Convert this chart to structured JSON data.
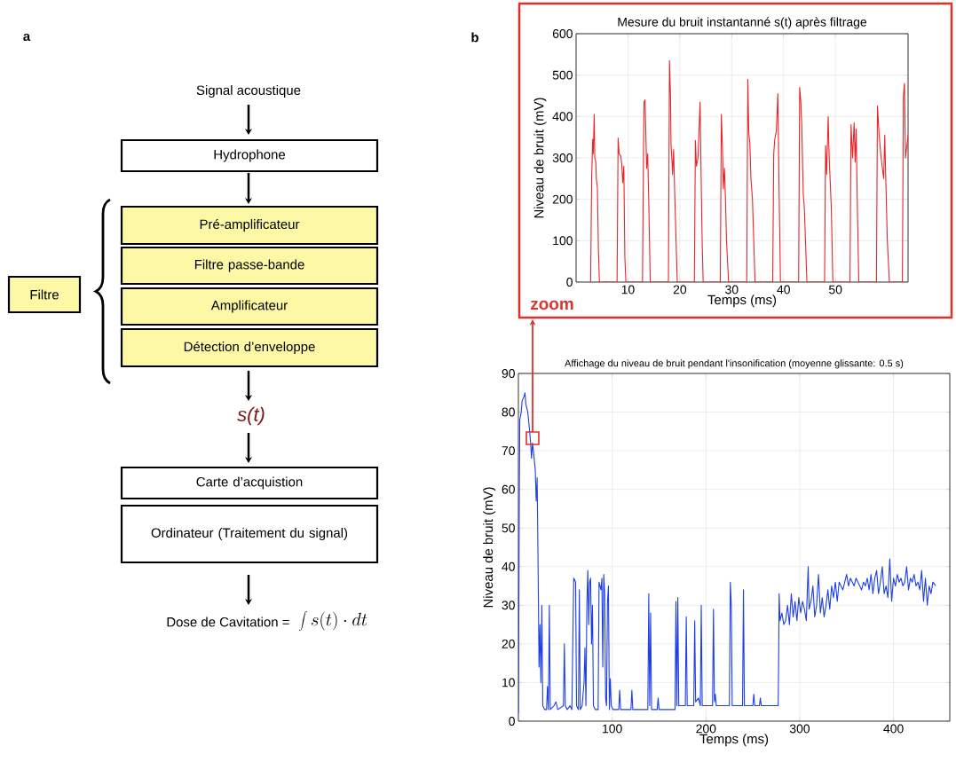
{
  "chart_data": [
    {
      "type": "other",
      "annotations": [
        "a",
        "Signal acoustique",
        "Hydrophone",
        "Pré-amplificateur",
        "Filtre passe-bande",
        "Amplificateur",
        "Détection d’enveloppe",
        "Filtre",
        "s(t)",
        "Carte d’acquistion",
        "Ordinateur (Traitement du signal)",
        "Dose de Cavitation  =",
        "\\int s(t)\\cdot dt"
      ]
    },
    {
      "type": "line",
      "title": "Mesure du bruit instantanné s(t) après filtrage",
      "xlabel": "Temps (ms)",
      "ylabel": "Niveau de bruit (mV)",
      "annotations": [
        "b",
        "zoom"
      ],
      "color": "#e8262a",
      "xlim": [
        0,
        64
      ],
      "ylim": [
        0,
        600
      ],
      "xticks": [
        10,
        20,
        30,
        40,
        50
      ],
      "yticks": [
        0,
        100,
        200,
        300,
        400,
        500,
        600
      ],
      "grid": true,
      "x": [
        2.8,
        3.0,
        3.2,
        3.3,
        3.5,
        3.6,
        3.8,
        3.9,
        4.1,
        4.3,
        4.5,
        7.9,
        8.1,
        8.3,
        8.6,
        8.8,
        9.0,
        9.2,
        9.4,
        9.6,
        12.8,
        13.0,
        13.1,
        13.3,
        13.5,
        13.6,
        13.8,
        14.0,
        14.3,
        17.8,
        18.0,
        18.2,
        18.3,
        18.5,
        18.6,
        18.8,
        19.0,
        19.5,
        22.8,
        23.0,
        23.2,
        23.5,
        23.9,
        24.1,
        24.3,
        24.5,
        27.8,
        28.0,
        28.2,
        28.4,
        28.6,
        28.8,
        29.0,
        29.4,
        32.9,
        33.1,
        33.3,
        33.5,
        33.7,
        34.0,
        34.5,
        37.9,
        38.1,
        38.3,
        38.6,
        38.9,
        39.1,
        39.4,
        42.9,
        43.1,
        43.3,
        43.5,
        43.8,
        44.0,
        44.5,
        47.9,
        48.1,
        48.3,
        48.6,
        48.8,
        49.0,
        49.2,
        49.5,
        52.8,
        53.0,
        53.3,
        53.6,
        53.8,
        54.0,
        54.2,
        54.5,
        57.9,
        58.1,
        58.4,
        58.8,
        59.3,
        59.5,
        59.7,
        60.0,
        60.4,
        62.9,
        63.1,
        63.3,
        63.5,
        64
      ],
      "values": [
        0,
        250,
        345,
        310,
        405,
        300,
        290,
        250,
        230,
        80,
        0,
        0,
        348,
        310,
        305,
        285,
        240,
        280,
        60,
        0,
        0,
        330,
        435,
        440,
        330,
        275,
        310,
        200,
        0,
        0,
        535,
        450,
        330,
        290,
        260,
        320,
        220,
        0,
        0,
        342,
        280,
        300,
        435,
        260,
        100,
        0,
        0,
        405,
        330,
        225,
        275,
        200,
        100,
        0,
        0,
        490,
        360,
        335,
        250,
        200,
        0,
        0,
        310,
        345,
        365,
        455,
        250,
        0,
        0,
        470,
        440,
        380,
        210,
        180,
        0,
        0,
        330,
        260,
        400,
        295,
        240,
        180,
        0,
        0,
        380,
        300,
        385,
        290,
        370,
        200,
        0,
        0,
        425,
        360,
        300,
        250,
        355,
        250,
        100,
        0,
        0,
        450,
        480,
        300,
        355
      ]
    },
    {
      "type": "line",
      "title": "Affichage du niveau de bruit pendant l'insonification (moyenne glissante: 0.5 s)",
      "xlabel": "Temps (ms)",
      "ylabel": "Niveau de bruit (mV)",
      "color": "#1f3fe6",
      "xlim": [
        0,
        460
      ],
      "ylim": [
        0,
        90
      ],
      "xticks": [
        100,
        200,
        300,
        400
      ],
      "yticks": [
        0,
        10,
        20,
        30,
        40,
        50,
        60,
        70,
        80,
        90
      ],
      "grid": true,
      "x": [
        0,
        1,
        1.5,
        3,
        4,
        6,
        7,
        8,
        10,
        12,
        13,
        14,
        15,
        16,
        18,
        19,
        20,
        21,
        22,
        23,
        24,
        25,
        26,
        28,
        30,
        31,
        32,
        33,
        34,
        38,
        40,
        42,
        48,
        49,
        50,
        52,
        55,
        57,
        59,
        61,
        62,
        64,
        65,
        66,
        68,
        70,
        71,
        72,
        73,
        74,
        75,
        76,
        77,
        78,
        79,
        80,
        82,
        85,
        86,
        88,
        89,
        90,
        91,
        92,
        93,
        94,
        95,
        96,
        97,
        98,
        99,
        101,
        107,
        108,
        109,
        120,
        121,
        122,
        138,
        139,
        140,
        141,
        142,
        148,
        149,
        150,
        167,
        168,
        169,
        170,
        171,
        178,
        179,
        180,
        187,
        188,
        189,
        192,
        194,
        195,
        196,
        207,
        208,
        209,
        210,
        211,
        225,
        226,
        227,
        228,
        239,
        240,
        241,
        250,
        251,
        252,
        257,
        258,
        259,
        275,
        277,
        277.5,
        278,
        279,
        281,
        283,
        285,
        287,
        289,
        291,
        293,
        295,
        297,
        299,
        301,
        303,
        305,
        307,
        309,
        310,
        312,
        314,
        316,
        318,
        320,
        322,
        324,
        326,
        328,
        330,
        332,
        334,
        336,
        338,
        340,
        342,
        344,
        346,
        348,
        350,
        352,
        354,
        356,
        358,
        360,
        362,
        364,
        366,
        368,
        370,
        372,
        374,
        376,
        378,
        380,
        382,
        384,
        386,
        388,
        390,
        392,
        394,
        396,
        398,
        400,
        402,
        404,
        406,
        408,
        410,
        412,
        414,
        416,
        418,
        420,
        422,
        424,
        426,
        428,
        430,
        432,
        434,
        436,
        438,
        440,
        442,
        445
      ],
      "values": [
        2,
        60,
        78,
        80,
        83,
        84,
        85,
        82,
        80,
        75,
        72,
        68,
        72,
        70,
        65,
        57,
        63,
        40,
        14,
        25,
        10,
        30,
        4,
        3,
        3,
        9,
        3,
        30,
        3,
        4,
        5,
        3,
        4,
        20,
        4,
        3,
        4,
        3,
        37,
        36,
        4,
        3,
        34,
        3,
        4,
        10,
        19,
        4,
        30,
        39,
        25,
        36,
        37,
        20,
        30,
        4,
        3,
        3,
        36,
        34,
        37,
        14,
        38,
        33,
        6,
        4,
        31,
        35,
        3,
        11,
        4,
        3,
        3,
        8,
        3,
        3,
        8,
        3,
        3,
        33,
        4,
        28,
        3,
        3,
        6,
        3,
        3,
        31,
        4,
        32,
        4,
        4,
        27,
        4,
        4,
        26,
        5,
        6,
        4,
        30,
        4,
        4,
        29,
        5,
        7,
        4,
        4,
        36,
        30,
        4,
        4,
        34,
        4,
        4,
        7,
        4,
        4,
        6,
        4,
        4,
        4,
        15,
        33,
        26,
        28,
        25,
        26,
        30,
        25,
        33,
        27,
        31,
        26,
        32,
        28,
        31,
        29,
        26,
        40,
        29,
        31,
        35,
        27,
        30,
        38,
        28,
        32,
        27,
        30,
        34,
        29,
        35,
        32,
        36,
        31,
        36,
        35,
        34,
        36,
        38,
        35,
        37,
        36,
        35,
        37,
        36,
        35,
        34,
        36,
        35,
        37,
        34,
        38,
        33,
        37,
        39,
        33,
        36,
        40,
        33,
        35,
        32,
        42,
        31,
        37,
        35,
        38,
        36,
        37,
        35,
        36,
        40,
        34,
        37,
        36,
        38,
        35,
        36,
        34,
        39,
        31,
        37,
        30,
        35,
        33,
        36,
        35
      ]
    }
  ]
}
